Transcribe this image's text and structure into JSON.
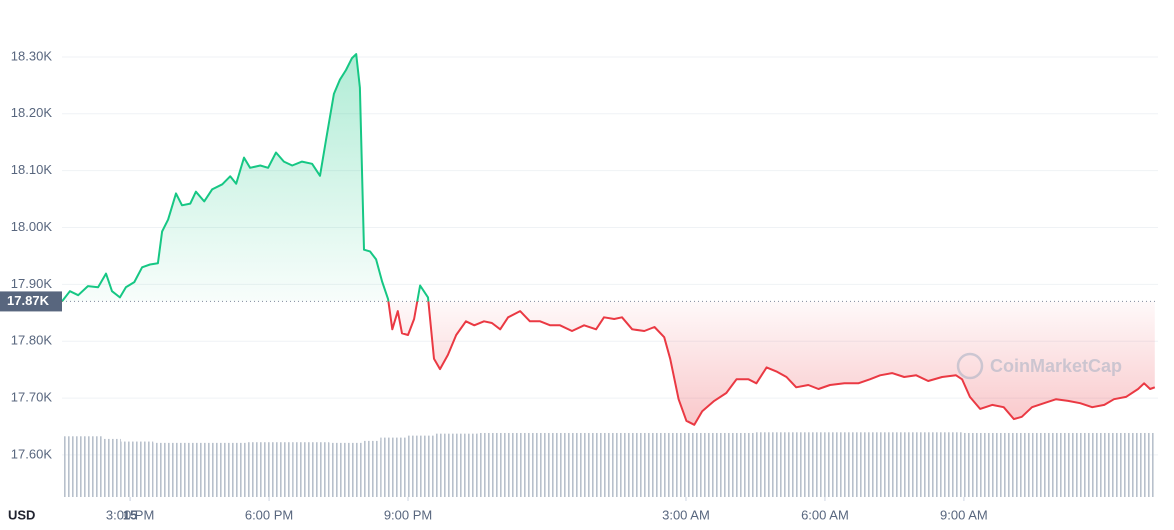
{
  "chart_data": {
    "type": "line",
    "x": [
      13.53,
      13.7,
      13.88,
      14.09,
      14.31,
      14.48,
      14.61,
      14.78,
      14.91,
      15.09,
      15.26,
      15.43,
      15.6,
      15.69,
      15.82,
      15.99,
      16.12,
      16.3,
      16.42,
      16.6,
      16.77,
      16.99,
      17.16,
      17.29,
      17.46,
      17.59,
      17.81,
      17.98,
      18.15,
      18.32,
      18.5,
      18.71,
      18.93,
      19.1,
      19.23,
      19.4,
      19.53,
      19.66,
      19.79,
      19.88,
      19.96,
      20.05,
      20.18,
      20.31,
      20.44,
      20.57,
      20.66,
      20.78,
      20.87,
      21.0,
      21.13,
      21.26,
      21.43,
      21.56,
      21.69,
      21.86,
      22.04,
      22.25,
      22.43,
      22.64,
      22.81,
      22.99,
      23.16,
      23.42,
      23.63,
      23.85,
      24.07,
      24.28,
      24.54,
      24.8,
      25.06,
      25.23,
      25.45,
      25.62,
      25.84,
      26.1,
      26.32,
      26.53,
      26.66,
      26.84,
      27.01,
      27.18,
      27.35,
      27.61,
      27.87,
      28.09,
      28.35,
      28.52,
      28.74,
      28.95,
      29.17,
      29.38,
      29.64,
      29.86,
      30.11,
      30.42,
      30.72,
      30.97,
      31.19,
      31.45,
      31.71,
      31.97,
      32.23,
      32.53,
      32.83,
      32.96,
      33.13,
      33.35,
      33.61,
      33.86,
      34.08,
      34.25,
      34.47,
      34.73,
      34.99,
      35.25,
      35.51,
      35.77,
      36.03,
      36.24,
      36.5,
      36.76,
      36.89,
      37.02,
      37.12
    ],
    "values": [
      17.87,
      17.888,
      17.881,
      17.897,
      17.895,
      17.919,
      17.888,
      17.877,
      17.895,
      17.904,
      17.93,
      17.935,
      17.937,
      17.993,
      18.014,
      18.06,
      18.039,
      18.042,
      18.063,
      18.046,
      18.067,
      18.076,
      18.09,
      18.077,
      18.123,
      18.105,
      18.109,
      18.105,
      18.132,
      18.116,
      18.109,
      18.116,
      18.112,
      18.091,
      18.154,
      18.235,
      18.26,
      18.277,
      18.298,
      18.305,
      18.246,
      17.961,
      17.958,
      17.944,
      17.905,
      17.874,
      17.821,
      17.853,
      17.814,
      17.811,
      17.839,
      17.898,
      17.877,
      17.769,
      17.751,
      17.776,
      17.811,
      17.835,
      17.828,
      17.835,
      17.832,
      17.821,
      17.842,
      17.853,
      17.835,
      17.835,
      17.828,
      17.828,
      17.818,
      17.828,
      17.821,
      17.842,
      17.839,
      17.842,
      17.821,
      17.818,
      17.825,
      17.807,
      17.769,
      17.698,
      17.66,
      17.653,
      17.677,
      17.695,
      17.709,
      17.733,
      17.733,
      17.726,
      17.754,
      17.747,
      17.737,
      17.719,
      17.723,
      17.716,
      17.723,
      17.726,
      17.726,
      17.733,
      17.74,
      17.744,
      17.737,
      17.74,
      17.73,
      17.737,
      17.74,
      17.733,
      17.702,
      17.681,
      17.688,
      17.684,
      17.663,
      17.667,
      17.684,
      17.691,
      17.698,
      17.695,
      17.691,
      17.684,
      17.688,
      17.698,
      17.702,
      17.716,
      17.726,
      17.716,
      17.719
    ],
    "up_color": "#16c784",
    "down_color": "#ea3943",
    "baseline": {
      "value": 17.87,
      "label": "17.87K"
    },
    "xlim": [
      13.53,
      37.19
    ],
    "xticks": [
      {
        "value": 15,
        "label": "3:00 PM"
      },
      {
        "value": 18,
        "label": "6:00 PM"
      },
      {
        "value": 21,
        "label": "9:00 PM"
      },
      15,
      {
        "value": 27,
        "label": "3:00 AM"
      },
      {
        "value": 30,
        "label": "6:00 AM"
      },
      {
        "value": 33,
        "label": "9:00 AM"
      }
    ],
    "ylim": [
      17.526,
      18.365
    ],
    "yticks": [
      {
        "value": 17.6,
        "label": "17.60K"
      },
      {
        "value": 17.7,
        "label": "17.70K"
      },
      {
        "value": 17.8,
        "label": "17.80K"
      },
      {
        "value": 17.9,
        "label": "17.90K"
      },
      {
        "value": 18.0,
        "label": "18.00K"
      },
      {
        "value": 18.1,
        "label": "18.10K"
      },
      {
        "value": 18.2,
        "label": "18.20K"
      },
      {
        "value": 18.3,
        "label": "18.30K"
      }
    ],
    "grid": true,
    "volume": {
      "color": "#b8c0cc",
      "x": [
        13.53,
        14.4,
        14.8,
        15.5,
        16.5,
        17.5,
        18.5,
        19.3,
        20.0,
        20.4,
        21.0,
        21.6,
        22.5,
        24,
        25.5,
        27,
        28.5,
        30,
        31.5,
        33,
        34.5,
        36
      ],
      "values": [
        92,
        88,
        84,
        82,
        82,
        83,
        83,
        82,
        85,
        90,
        93,
        96,
        97,
        97,
        97,
        97,
        98,
        98,
        98,
        97,
        97,
        97
      ]
    },
    "currency_label": "USD",
    "watermark": "CoinMarketCap"
  }
}
